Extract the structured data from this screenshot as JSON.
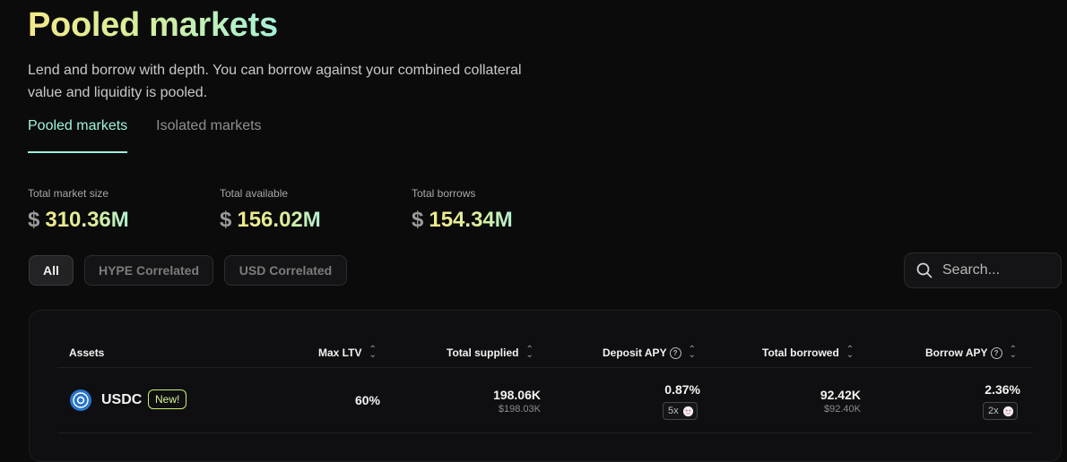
{
  "header": {
    "title": "Pooled markets",
    "subtitle": "Lend and borrow with depth. You can borrow against your combined collateral value and liquidity is pooled."
  },
  "tabs": [
    {
      "label": "Pooled markets",
      "active": true
    },
    {
      "label": "Isolated markets",
      "active": false
    }
  ],
  "stats": [
    {
      "label": "Total market size",
      "currency": "$",
      "value": "310.36M"
    },
    {
      "label": "Total available",
      "currency": "$",
      "value": "156.02M"
    },
    {
      "label": "Total borrows",
      "currency": "$",
      "value": "154.34M"
    }
  ],
  "filters": [
    {
      "label": "All",
      "active": true
    },
    {
      "label": "HYPE Correlated",
      "active": false
    },
    {
      "label": "USD Correlated",
      "active": false
    }
  ],
  "search": {
    "placeholder": "Search..."
  },
  "table": {
    "columns": [
      "Assets",
      "Max LTV",
      "Total supplied",
      "Deposit APY",
      "Total borrowed",
      "Borrow APY"
    ],
    "rows": [
      {
        "asset": "USDC",
        "badge": "New!",
        "max_ltv": "60%",
        "total_supplied": "198.06K",
        "total_supplied_usd": "$198.03K",
        "deposit_apy": "0.87%",
        "deposit_multiplier": "5x",
        "total_borrowed": "92.42K",
        "total_borrowed_usd": "$92.40K",
        "borrow_apy": "2.36%",
        "borrow_multiplier": "2x"
      }
    ]
  },
  "colors": {
    "background": "#0b0b0c",
    "accent_tab": "#9ff3dc",
    "badge_border": "#c9ef6f",
    "usdc_blue": "#2775ca"
  }
}
